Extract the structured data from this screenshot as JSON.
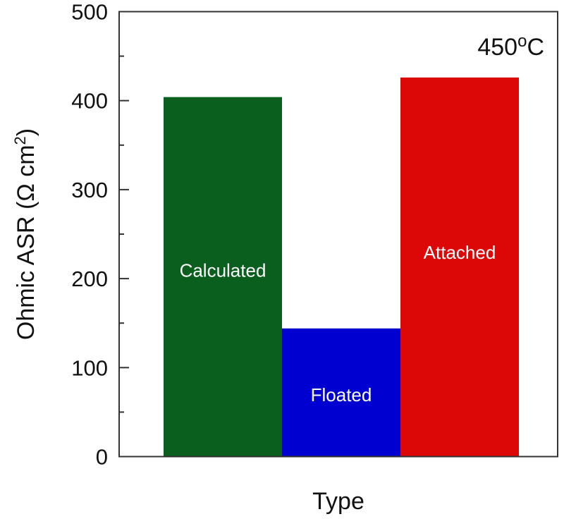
{
  "chart_data": {
    "type": "bar",
    "categories": [
      "Calculated",
      "Floated",
      "Attached"
    ],
    "values": [
      404,
      144,
      426
    ],
    "colors": [
      "#0a5e1e",
      "#0000d0",
      "#dc0808"
    ],
    "xlabel": "Type",
    "ylabel": "Ohmic ASR (Ω cm²)",
    "ylabel_parts": {
      "main": "Ohmic ASR (Ω cm",
      "sup": "2",
      "end": ")"
    },
    "annotation": {
      "text": "450",
      "sup": "o",
      "end": "C"
    },
    "ylim": [
      0,
      500
    ],
    "yticks": [
      0,
      100,
      200,
      300,
      400,
      500
    ],
    "yticks_minor_step": 50,
    "grid": false,
    "legend": "none"
  }
}
